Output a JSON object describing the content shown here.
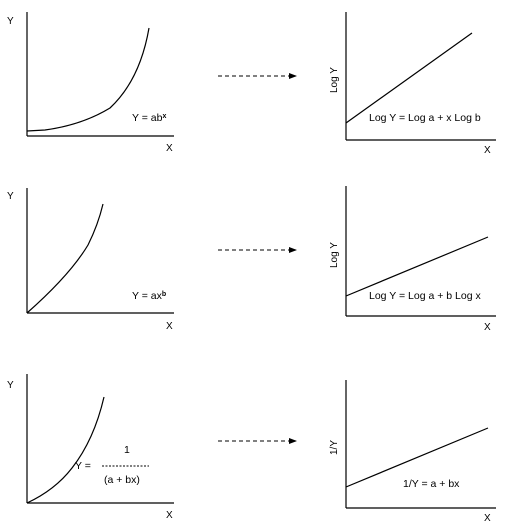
{
  "rows": [
    {
      "left": {
        "y_label": "Y",
        "x_label": "X",
        "equation_base": "Y = ab",
        "equation_sup": "x"
      },
      "right": {
        "y_label": "Log Y",
        "x_label": "X",
        "equation": "Log  Y = Log a + x  Log b"
      }
    },
    {
      "left": {
        "y_label": "Y",
        "x_label": "X",
        "equation_base": "Y = ax",
        "equation_sup": "b"
      },
      "right": {
        "y_label": "Log Y",
        "x_label": "X",
        "equation": "Log  Y = Log a + b  Log x"
      }
    },
    {
      "left": {
        "y_label": "Y",
        "x_label": "X",
        "eq_lhs": "Y =",
        "eq_num": "1",
        "eq_den": "(a + bx)"
      },
      "right": {
        "y_label": "1/Y",
        "x_label": "X",
        "equation": "1/Y = a + bx"
      }
    }
  ]
}
